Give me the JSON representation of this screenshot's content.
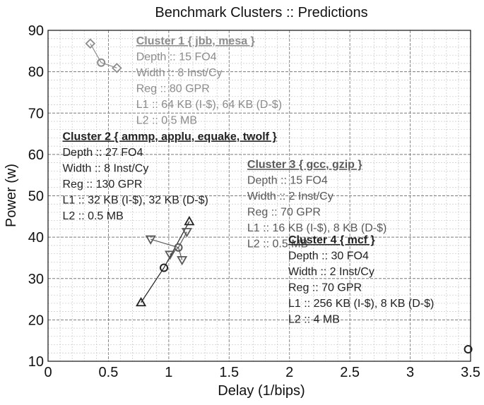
{
  "chart_data": {
    "type": "scatter",
    "title": "Benchmark Clusters :: Predictions",
    "xlabel": "Delay (1/bips)",
    "ylabel": "Power (w)",
    "xlim": [
      0,
      3.5
    ],
    "ylim": [
      10,
      90
    ],
    "xticks": [
      "0",
      "0.5",
      "1",
      "1.5",
      "2",
      "2.5",
      "3",
      "3.5"
    ],
    "yticks": [
      "10",
      "20",
      "30",
      "40",
      "50",
      "60",
      "70",
      "80",
      "90"
    ],
    "grid": true,
    "clusters": [
      {
        "name": "Cluster 1 { jbb, mesa }",
        "color": "#8c8c8c",
        "centroid": {
          "x": 0.44,
          "y": 82.2,
          "marker": "circle"
        },
        "points": [
          {
            "x": 0.35,
            "y": 86.8,
            "marker": "diamond"
          },
          {
            "x": 0.57,
            "y": 80.9,
            "marker": "diamond"
          }
        ],
        "details": [
          "Depth :: 15 FO4",
          "Width :: 8 Inst/Cy",
          "Reg :: 80 GPR",
          "L1 :: 64 KB (I-$), 64 KB (D-$)",
          "L2 :: 0.5 MB"
        ]
      },
      {
        "name": "Cluster 2 { ammp, applu, equake, twolf }",
        "color": "#222222",
        "centroid": {
          "x": 0.96,
          "y": 32.6,
          "marker": "circle"
        },
        "points": [
          {
            "x": 0.77,
            "y": 24.2,
            "marker": "triangle-up"
          },
          {
            "x": 1.17,
            "y": 43.8,
            "marker": "triangle-up"
          }
        ],
        "details": [
          "Depth :: 27 FO4",
          "Width :: 8 Inst/Cy",
          "Reg :: 130 GPR",
          "L1 :: 32 KB (I-$), 32 KB (D-$)",
          "L2 :: 0.5 MB"
        ]
      },
      {
        "name": "Cluster 3 { gcc, gzip }",
        "color": "#5a5a5a",
        "centroid": {
          "x": 1.08,
          "y": 37.5,
          "marker": "circle"
        },
        "points": [
          {
            "x": 0.85,
            "y": 39.5,
            "marker": "triangle-down"
          },
          {
            "x": 1.01,
            "y": 35.8,
            "marker": "triangle-down"
          },
          {
            "x": 1.11,
            "y": 34.5,
            "marker": "triangle-down"
          },
          {
            "x": 1.15,
            "y": 41.3,
            "marker": "triangle-down"
          }
        ],
        "details": [
          "Depth :: 15 FO4",
          "Width :: 2 Inst/Cy",
          "Reg :: 70 GPR",
          "L1 :: 16 KB (I-$), 8 KB (D-$)",
          "L2 :: 0.5 MB"
        ]
      },
      {
        "name": "Cluster 4 { mcf }",
        "color": "#222222",
        "centroid": {
          "x": 3.48,
          "y": 12.9,
          "marker": "circle"
        },
        "points": [],
        "details": [
          "Depth :: 30 FO4",
          "Width :: 2 Inst/Cy",
          "Reg :: 70 GPR",
          "L1 :: 256 KB (I-$), 8 KB (D-$)",
          "L2 :: 4 MB"
        ]
      }
    ]
  }
}
